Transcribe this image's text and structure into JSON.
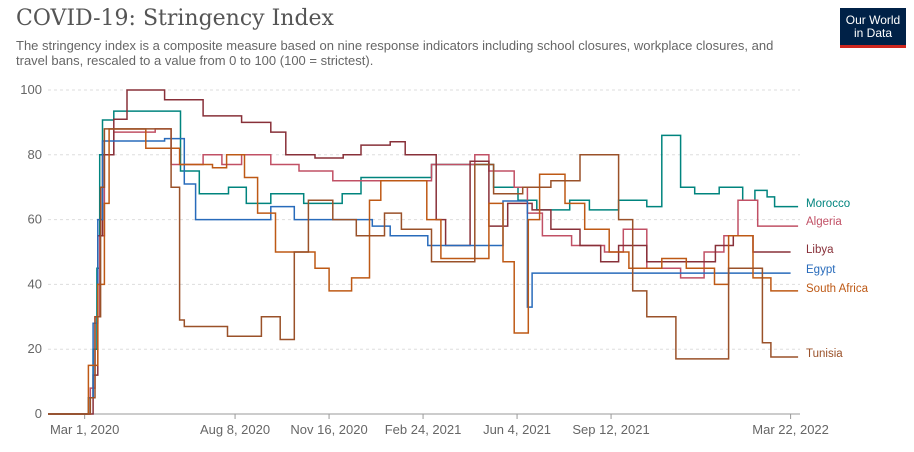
{
  "header": {
    "title": "COVID-19: Stringency Index",
    "subtitle": "The stringency index is a composite measure based on nine response indicators including school closures, workplace closures, and travel bans, rescaled to a value from 0 to 100 (100 = strictest)."
  },
  "logo": {
    "line1": "Our World",
    "line2": "in Data",
    "bg": "#002147",
    "accent": "#ce261e"
  },
  "chart_data": {
    "type": "line",
    "title": "COVID-19: Stringency Index",
    "xlabel": "",
    "ylabel": "",
    "ylim": [
      0,
      100
    ],
    "xlim": [
      "2020-01-22",
      "2022-04-01"
    ],
    "y_ticks": [
      0,
      20,
      40,
      60,
      80,
      100
    ],
    "x_ticks": [
      {
        "date": "2020-03-01",
        "label": "Mar 1, 2020"
      },
      {
        "date": "2020-08-08",
        "label": "Aug 8, 2020"
      },
      {
        "date": "2020-11-16",
        "label": "Nov 16, 2020"
      },
      {
        "date": "2021-02-24",
        "label": "Feb 24, 2021"
      },
      {
        "date": "2021-06-04",
        "label": "Jun 4, 2021"
      },
      {
        "date": "2021-09-12",
        "label": "Sep 12, 2021"
      },
      {
        "date": "2022-03-22",
        "label": "Mar 22, 2022"
      }
    ],
    "grid": "horizontal-dashed",
    "series": [
      {
        "name": "Morocco",
        "color": "#00847e",
        "points": [
          [
            "2020-01-22",
            0
          ],
          [
            "2020-02-29",
            0
          ],
          [
            "2020-03-05",
            5
          ],
          [
            "2020-03-10",
            20
          ],
          [
            "2020-03-14",
            45
          ],
          [
            "2020-03-17",
            80
          ],
          [
            "2020-03-20",
            90.74
          ],
          [
            "2020-04-01",
            93.5
          ],
          [
            "2020-06-10",
            93.5
          ],
          [
            "2020-06-11",
            75
          ],
          [
            "2020-07-01",
            68
          ],
          [
            "2020-08-01",
            70
          ],
          [
            "2020-08-20",
            65
          ],
          [
            "2020-09-15",
            68
          ],
          [
            "2020-10-20",
            65
          ],
          [
            "2020-11-30",
            68
          ],
          [
            "2020-12-20",
            73
          ],
          [
            "2021-01-20",
            73
          ],
          [
            "2021-03-05",
            77
          ],
          [
            "2021-04-13",
            77
          ],
          [
            "2021-05-10",
            70
          ],
          [
            "2021-06-05",
            66
          ],
          [
            "2021-06-25",
            63
          ],
          [
            "2021-07-30",
            66
          ],
          [
            "2021-08-20",
            63
          ],
          [
            "2021-09-20",
            66
          ],
          [
            "2021-10-20",
            64
          ],
          [
            "2021-11-05",
            86
          ],
          [
            "2021-11-20",
            86
          ],
          [
            "2021-11-25",
            70
          ],
          [
            "2021-12-10",
            68
          ],
          [
            "2022-01-05",
            70
          ],
          [
            "2022-01-30",
            66
          ],
          [
            "2022-02-12",
            69
          ],
          [
            "2022-02-25",
            67
          ],
          [
            "2022-03-05",
            64
          ],
          [
            "2022-03-30",
            64
          ]
        ]
      },
      {
        "name": "Algeria",
        "color": "#c15065",
        "points": [
          [
            "2020-01-22",
            0
          ],
          [
            "2020-02-29",
            0
          ],
          [
            "2020-03-07",
            8
          ],
          [
            "2020-03-12",
            30
          ],
          [
            "2020-03-17",
            55
          ],
          [
            "2020-03-22",
            80
          ],
          [
            "2020-04-01",
            87
          ],
          [
            "2020-05-15",
            88
          ],
          [
            "2020-06-01",
            77
          ],
          [
            "2020-06-25",
            77
          ],
          [
            "2020-07-05",
            80
          ],
          [
            "2020-07-25",
            77
          ],
          [
            "2020-08-15",
            80
          ],
          [
            "2020-09-15",
            77
          ],
          [
            "2020-10-15",
            75
          ],
          [
            "2020-11-20",
            72
          ],
          [
            "2021-01-10",
            72
          ],
          [
            "2021-02-10",
            72
          ],
          [
            "2021-03-05",
            77
          ],
          [
            "2021-04-20",
            80
          ],
          [
            "2021-05-05",
            75
          ],
          [
            "2021-06-01",
            70
          ],
          [
            "2021-06-15",
            62
          ],
          [
            "2021-07-01",
            55
          ],
          [
            "2021-08-01",
            52
          ],
          [
            "2021-09-05",
            50
          ],
          [
            "2021-09-25",
            57
          ],
          [
            "2021-10-20",
            45
          ],
          [
            "2021-11-25",
            42
          ],
          [
            "2021-12-20",
            50
          ],
          [
            "2022-01-10",
            55
          ],
          [
            "2022-01-25",
            66
          ],
          [
            "2022-02-15",
            58
          ],
          [
            "2022-03-30",
            58
          ]
        ]
      },
      {
        "name": "Libya",
        "color": "#883039",
        "points": [
          [
            "2020-01-22",
            0
          ],
          [
            "2020-02-29",
            0
          ],
          [
            "2020-03-10",
            12
          ],
          [
            "2020-03-15",
            55
          ],
          [
            "2020-03-20",
            80
          ],
          [
            "2020-04-01",
            91
          ],
          [
            "2020-04-15",
            100
          ],
          [
            "2020-05-20",
            100
          ],
          [
            "2020-05-25",
            97
          ],
          [
            "2020-06-25",
            97
          ],
          [
            "2020-07-05",
            92
          ],
          [
            "2020-08-15",
            90
          ],
          [
            "2020-09-15",
            87
          ],
          [
            "2020-10-01",
            80
          ],
          [
            "2020-11-01",
            79
          ],
          [
            "2020-12-01",
            80
          ],
          [
            "2020-12-20",
            83
          ],
          [
            "2021-01-20",
            84
          ],
          [
            "2021-02-05",
            80
          ],
          [
            "2021-03-10",
            60
          ],
          [
            "2021-03-20",
            52
          ],
          [
            "2021-04-15",
            78
          ],
          [
            "2021-05-05",
            58
          ],
          [
            "2021-05-25",
            65
          ],
          [
            "2021-06-20",
            63
          ],
          [
            "2021-07-10",
            57
          ],
          [
            "2021-08-10",
            52
          ],
          [
            "2021-09-01",
            47
          ],
          [
            "2021-09-20",
            52
          ],
          [
            "2021-10-20",
            47
          ],
          [
            "2021-11-20",
            47
          ],
          [
            "2021-12-01",
            47
          ],
          [
            "2022-01-01",
            52
          ],
          [
            "2022-01-20",
            55
          ],
          [
            "2022-02-10",
            50
          ],
          [
            "2022-03-22",
            50
          ]
        ]
      },
      {
        "name": "Egypt",
        "color": "#286bbb",
        "points": [
          [
            "2020-01-22",
            0
          ],
          [
            "2020-02-29",
            0
          ],
          [
            "2020-03-05",
            5
          ],
          [
            "2020-03-10",
            28
          ],
          [
            "2020-03-15",
            60
          ],
          [
            "2020-03-20",
            84.26
          ],
          [
            "2020-05-01",
            84.26
          ],
          [
            "2020-05-25",
            85
          ],
          [
            "2020-06-15",
            71
          ],
          [
            "2020-06-27",
            60
          ],
          [
            "2020-08-31",
            60
          ],
          [
            "2020-09-15",
            64
          ],
          [
            "2020-10-10",
            60
          ],
          [
            "2020-12-01",
            60
          ],
          [
            "2021-01-01",
            58
          ],
          [
            "2021-01-20",
            55
          ],
          [
            "2021-03-01",
            52
          ],
          [
            "2021-05-01",
            52
          ],
          [
            "2021-05-20",
            65.74
          ],
          [
            "2021-06-10",
            65.74
          ],
          [
            "2021-06-15",
            33
          ],
          [
            "2021-06-20",
            43.5
          ],
          [
            "2021-12-31",
            43.5
          ],
          [
            "2022-03-22",
            43.5
          ]
        ]
      },
      {
        "name": "South Africa",
        "color": "#be5915",
        "points": [
          [
            "2020-01-22",
            0
          ],
          [
            "2020-02-29",
            0
          ],
          [
            "2020-03-05",
            15
          ],
          [
            "2020-03-15",
            40
          ],
          [
            "2020-03-22",
            65
          ],
          [
            "2020-03-27",
            87.96
          ],
          [
            "2020-05-01",
            87.96
          ],
          [
            "2020-05-05",
            82
          ],
          [
            "2020-06-10",
            77
          ],
          [
            "2020-07-15",
            76
          ],
          [
            "2020-07-30",
            80
          ],
          [
            "2020-08-18",
            73
          ],
          [
            "2020-09-01",
            62
          ],
          [
            "2020-09-20",
            50
          ],
          [
            "2020-11-01",
            45
          ],
          [
            "2020-11-16",
            38
          ],
          [
            "2020-12-10",
            42
          ],
          [
            "2020-12-29",
            66
          ],
          [
            "2021-01-10",
            72
          ],
          [
            "2021-02-28",
            60
          ],
          [
            "2021-03-15",
            48
          ],
          [
            "2021-04-10",
            48
          ],
          [
            "2021-05-05",
            65
          ],
          [
            "2021-05-20",
            47
          ],
          [
            "2021-06-01",
            25
          ],
          [
            "2021-06-16",
            60
          ],
          [
            "2021-06-28",
            74
          ],
          [
            "2021-07-25",
            65
          ],
          [
            "2021-08-15",
            57
          ],
          [
            "2021-09-10",
            50
          ],
          [
            "2021-10-01",
            45
          ],
          [
            "2021-11-05",
            48
          ],
          [
            "2021-12-01",
            45
          ],
          [
            "2021-12-31",
            40
          ],
          [
            "2022-01-15",
            55
          ],
          [
            "2022-02-10",
            42
          ],
          [
            "2022-03-01",
            38
          ],
          [
            "2022-03-30",
            38
          ]
        ]
      },
      {
        "name": "Tunisia",
        "color": "#9a5129",
        "points": [
          [
            "2020-01-22",
            0
          ],
          [
            "2020-02-29",
            0
          ],
          [
            "2020-03-07",
            5
          ],
          [
            "2020-03-12",
            30
          ],
          [
            "2020-03-18",
            70
          ],
          [
            "2020-03-22",
            88
          ],
          [
            "2020-05-20",
            88
          ],
          [
            "2020-06-01",
            70
          ],
          [
            "2020-06-10",
            29
          ],
          [
            "2020-06-15",
            27
          ],
          [
            "2020-07-25",
            27
          ],
          [
            "2020-07-31",
            24
          ],
          [
            "2020-08-31",
            24
          ],
          [
            "2020-09-05",
            30
          ],
          [
            "2020-09-25",
            23
          ],
          [
            "2020-10-05",
            23
          ],
          [
            "2020-10-10",
            50
          ],
          [
            "2020-10-25",
            66
          ],
          [
            "2020-11-20",
            60
          ],
          [
            "2020-12-15",
            55
          ],
          [
            "2021-01-14",
            62
          ],
          [
            "2021-02-01",
            57
          ],
          [
            "2021-03-05",
            47
          ],
          [
            "2021-04-01",
            47
          ],
          [
            "2021-04-20",
            77
          ],
          [
            "2021-05-10",
            68
          ],
          [
            "2021-06-01",
            68
          ],
          [
            "2021-06-10",
            70
          ],
          [
            "2021-07-10",
            72
          ],
          [
            "2021-08-10",
            80
          ],
          [
            "2021-09-05",
            80
          ],
          [
            "2021-09-20",
            60
          ],
          [
            "2021-10-05",
            38
          ],
          [
            "2021-10-20",
            30
          ],
          [
            "2021-11-20",
            17
          ],
          [
            "2021-12-31",
            17
          ],
          [
            "2022-01-15",
            45
          ],
          [
            "2022-02-10",
            45
          ],
          [
            "2022-02-20",
            22
          ],
          [
            "2022-03-01",
            17.6
          ],
          [
            "2022-03-30",
            17.6
          ]
        ]
      }
    ]
  }
}
